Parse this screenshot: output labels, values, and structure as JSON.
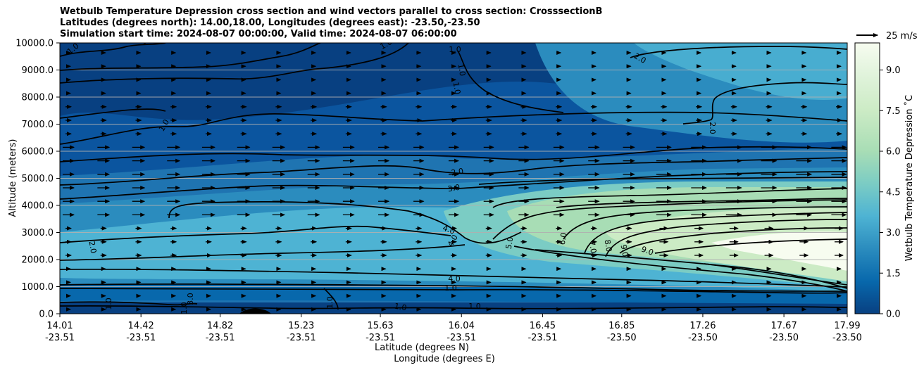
{
  "title": {
    "line1": "Wetbulb Temperature Depression cross section and wind vectors parallel to cross section: CrosssectionB",
    "line2": "Latitudes (degrees north): 14.00,18.00, Longitudes (degrees east): -23.50,-23.50",
    "line3": "Simulation start time: 2024-08-07 00:00:00, Valid time: 2024-08-07 06:00:00"
  },
  "colors": {
    "background_dark": "#084081",
    "mid_blue": "#1f74b1",
    "light_blue": "#4eb3d3",
    "light_green": "#a8ddb5",
    "pale": "#f7fcf0",
    "contour": "#000000"
  },
  "chart_data": {
    "type": "heatmap",
    "ylabel": "Altitude (meters)",
    "xlabel_line1": "Latitude (degrees N)",
    "xlabel_line2": "Longitude (degrees E)",
    "ylim": [
      0,
      10000
    ],
    "y_ticks": [
      "0.0",
      "1000.0",
      "2000.0",
      "3000.0",
      "4000.0",
      "5000.0",
      "6000.0",
      "7000.0",
      "8000.0",
      "9000.0",
      "10000.0"
    ],
    "x_ticks": [
      {
        "lat": "14.01",
        "lon": "-23.51"
      },
      {
        "lat": "14.42",
        "lon": "-23.51"
      },
      {
        "lat": "14.82",
        "lon": "-23.51"
      },
      {
        "lat": "15.23",
        "lon": "-23.51"
      },
      {
        "lat": "15.63",
        "lon": "-23.51"
      },
      {
        "lat": "16.04",
        "lon": "-23.51"
      },
      {
        "lat": "16.45",
        "lon": "-23.51"
      },
      {
        "lat": "16.85",
        "lon": "-23.50"
      },
      {
        "lat": "17.26",
        "lon": "-23.50"
      },
      {
        "lat": "17.67",
        "lon": "-23.50"
      },
      {
        "lat": "17.99",
        "lon": "-23.50"
      }
    ],
    "colorbar": {
      "label": "Wetbulb Temperature Depression ˚C",
      "min": 0,
      "max": 10,
      "ticks": [
        "0.0",
        "1.5",
        "3.0",
        "4.5",
        "6.0",
        "7.5",
        "9.0"
      ],
      "tick_values": [
        0,
        1.5,
        3,
        4.5,
        6,
        7.5,
        9
      ]
    },
    "quiver_key": {
      "label": "25 m/s"
    },
    "contour_labels": [
      {
        "text": "1.0"
      },
      {
        "text": "1.0"
      },
      {
        "text": "1.0"
      },
      {
        "text": "1.0"
      },
      {
        "text": "1.0"
      },
      {
        "text": "1.0"
      },
      {
        "text": "1.0"
      },
      {
        "text": "1.0"
      },
      {
        "text": "1.0"
      },
      {
        "text": "1.0"
      },
      {
        "text": "1.0"
      },
      {
        "text": "1.0"
      },
      {
        "text": "1.0"
      },
      {
        "text": "2.0"
      },
      {
        "text": "2.0"
      },
      {
        "text": "2.0"
      },
      {
        "text": "2.0"
      },
      {
        "text": "3.0"
      },
      {
        "text": "3.0"
      },
      {
        "text": "4.0"
      },
      {
        "text": "4.0"
      },
      {
        "text": "4.0"
      },
      {
        "text": "5.0"
      },
      {
        "text": "6.0"
      },
      {
        "text": "7.0"
      },
      {
        "text": "8.0"
      },
      {
        "text": "9.0"
      },
      {
        "text": "9.0"
      }
    ]
  }
}
